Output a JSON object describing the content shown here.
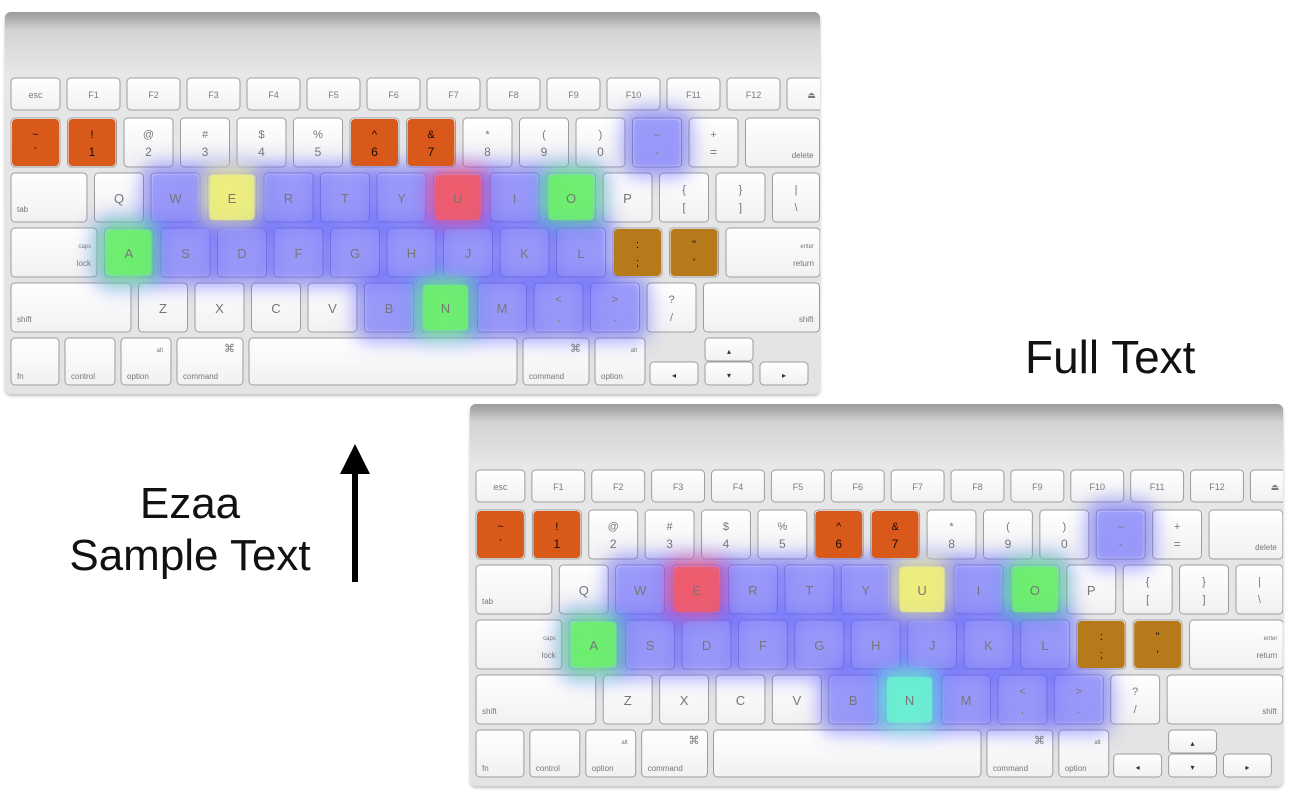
{
  "labels": {
    "full_text": "Full Text",
    "sample_line1": "Ezaa",
    "sample_line2": "Sample Text"
  },
  "icons": {
    "arrow": "arrow-up-icon",
    "heat_overlay": "heatmap-blob"
  },
  "colors": {
    "heat_blue": "#5b5bff",
    "heat_green": "#6cf06c",
    "heat_yellow": "#eef07a",
    "heat_red": "#f05a6a",
    "orange_key": "#d9591a",
    "olive_key": "#b77a1b"
  },
  "keyboard_legends": {
    "row_fn": [
      "esc",
      "F1",
      "F2",
      "F3",
      "F4",
      "F5",
      "F6",
      "F7",
      "F8",
      "F9",
      "F10",
      "F11",
      "F12",
      "⏏"
    ],
    "row_num": [
      [
        "~",
        "`"
      ],
      [
        "!",
        "1"
      ],
      [
        "@",
        "2"
      ],
      [
        "#",
        "3"
      ],
      [
        "$",
        "4"
      ],
      [
        "%",
        "5"
      ],
      [
        "^",
        "6"
      ],
      [
        "&",
        "7"
      ],
      [
        "*",
        "8"
      ],
      [
        "(",
        "9"
      ],
      [
        ")",
        "0"
      ],
      [
        "–",
        "-"
      ],
      [
        "+",
        "="
      ],
      [
        "delete",
        ""
      ]
    ],
    "row_q": [
      "tab",
      "Q",
      "W",
      "E",
      "R",
      "T",
      "Y",
      "U",
      "I",
      "O",
      "P",
      "{ [",
      "} ]",
      "| \\"
    ],
    "row_a": [
      "caps lock",
      "A",
      "S",
      "D",
      "F",
      "G",
      "H",
      "J",
      "K",
      "L",
      ": ;",
      "\" '",
      "enter return"
    ],
    "row_z": [
      "shift",
      "Z",
      "X",
      "C",
      "V",
      "B",
      "N",
      "M",
      "< ,",
      "> .",
      "? /",
      "shift"
    ],
    "row_bottom": [
      "fn",
      "control",
      "alt option",
      "⌘ command",
      "",
      "⌘ command",
      "alt option"
    ]
  },
  "heatmaps": {
    "sample": {
      "orange_keys": [
        "~",
        "!",
        "^",
        "&"
      ],
      "olive_keys": [
        ":",
        "\""
      ],
      "blue_keys": [
        "W",
        "R",
        "T",
        "Y",
        "I",
        "H",
        "J",
        "K",
        "L",
        "B",
        "M",
        "S",
        "D",
        "F",
        "G",
        "<",
        ">",
        "–"
      ],
      "green_keys": [
        "A",
        "N",
        "O"
      ],
      "yellow_keys": [
        "E"
      ],
      "red_keys": [
        "U"
      ]
    },
    "full": {
      "orange_keys": [
        "~",
        "!",
        "^",
        "&"
      ],
      "olive_keys": [
        ":",
        "\""
      ],
      "blue_keys": [
        "W",
        "R",
        "T",
        "Y",
        "I",
        "H",
        "J",
        "K",
        "L",
        "B",
        "M",
        "S",
        "D",
        "F",
        "G",
        "<",
        ">",
        "–"
      ],
      "green_keys": [
        "A",
        "O"
      ],
      "cyan_keys": [
        "N"
      ],
      "yellow_keys": [
        "U"
      ],
      "red_keys": [
        "E"
      ]
    }
  }
}
